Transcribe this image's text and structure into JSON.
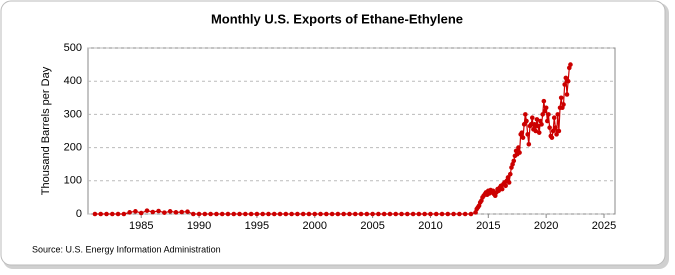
{
  "chart_data": {
    "type": "line",
    "title": "Monthly U.S. Exports of Ethane-Ethylene",
    "y_label": "Thousand Barrels per Day",
    "source": "Source: U.S. Energy Information Administration",
    "xlim": [
      1980.4,
      2025.95
    ],
    "xticks": [
      1985,
      1990,
      1995,
      2000,
      2005,
      2010,
      2015,
      2020,
      2025
    ],
    "ylim": [
      0,
      500
    ],
    "yticks": [
      0,
      100,
      200,
      300,
      400,
      500
    ],
    "grid": true,
    "series": [
      {
        "color": "#cc0000",
        "x": [
          1981.0,
          1981.5,
          1982.0,
          1982.5,
          1983.0,
          1983.5,
          1984.0,
          1984.5,
          1985.0,
          1985.5,
          1986.0,
          1986.5,
          1987.0,
          1987.5,
          1988.0,
          1988.5,
          1989.0,
          1989.5,
          1990.0,
          1990.5,
          1991.0,
          1991.5,
          1992.0,
          1992.5,
          1993.0,
          1993.5,
          1994.0,
          1994.5,
          1995.0,
          1995.5,
          1996.0,
          1996.5,
          1997.0,
          1997.5,
          1998.0,
          1998.5,
          1999.0,
          1999.5,
          2000.0,
          2000.5,
          2001.0,
          2001.5,
          2002.0,
          2002.5,
          2003.0,
          2003.5,
          2004.0,
          2004.5,
          2005.0,
          2005.5,
          2006.0,
          2006.5,
          2007.0,
          2007.5,
          2008.0,
          2008.5,
          2009.0,
          2009.5,
          2010.0,
          2010.5,
          2011.0,
          2011.5,
          2012.0,
          2012.5,
          2013.0,
          2013.5,
          2013.9,
          2014.0,
          2014.1,
          2014.2,
          2014.3,
          2014.4,
          2014.5,
          2014.6,
          2014.7,
          2014.8,
          2014.9,
          2015.0,
          2015.1,
          2015.2,
          2015.3,
          2015.4,
          2015.5,
          2015.6,
          2015.7,
          2015.8,
          2015.9,
          2016.0,
          2016.1,
          2016.2,
          2016.3,
          2016.4,
          2016.5,
          2016.6,
          2016.7,
          2016.8,
          2016.9,
          2017.0,
          2017.1,
          2017.2,
          2017.3,
          2017.4,
          2017.5,
          2017.6,
          2017.7,
          2017.8,
          2017.9,
          2018.0,
          2018.1,
          2018.2,
          2018.3,
          2018.4,
          2018.5,
          2018.6,
          2018.7,
          2018.8,
          2018.9,
          2019.0,
          2019.1,
          2019.2,
          2019.3,
          2019.4,
          2019.5,
          2019.6,
          2019.7,
          2019.8,
          2019.9,
          2020.0,
          2020.1,
          2020.2,
          2020.3,
          2020.4,
          2020.5,
          2020.6,
          2020.7,
          2020.8,
          2020.9,
          2021.0,
          2021.1,
          2021.2,
          2021.3,
          2021.4,
          2021.5,
          2021.6,
          2021.7,
          2021.8,
          2021.9,
          2022.0,
          2022.1
        ],
        "values": [
          0,
          0,
          0,
          0,
          0,
          0,
          5,
          8,
          3,
          10,
          6,
          9,
          4,
          8,
          5,
          6,
          7,
          0,
          0,
          0,
          0,
          0,
          0,
          0,
          0,
          0,
          0,
          0,
          0,
          0,
          0,
          0,
          0,
          0,
          0,
          0,
          0,
          0,
          0,
          0,
          0,
          0,
          0,
          0,
          0,
          0,
          0,
          0,
          0,
          0,
          0,
          0,
          0,
          0,
          0,
          0,
          0,
          0,
          0,
          0,
          0,
          0,
          0,
          0,
          0,
          0,
          5,
          15,
          20,
          25,
          35,
          40,
          50,
          55,
          60,
          65,
          58,
          70,
          62,
          72,
          65,
          70,
          60,
          55,
          65,
          75,
          70,
          80,
          85,
          75,
          90,
          95,
          85,
          100,
          110,
          95,
          120,
          140,
          150,
          160,
          175,
          190,
          180,
          200,
          185,
          240,
          245,
          230,
          270,
          300,
          280,
          240,
          210,
          265,
          270,
          290,
          255,
          270,
          250,
          285,
          265,
          245,
          280,
          270,
          300,
          340,
          310,
          320,
          280,
          300,
          260,
          235,
          230,
          250,
          290,
          260,
          240,
          300,
          250,
          320,
          350,
          320,
          330,
          390,
          410,
          360,
          400,
          440,
          450
        ]
      }
    ]
  }
}
